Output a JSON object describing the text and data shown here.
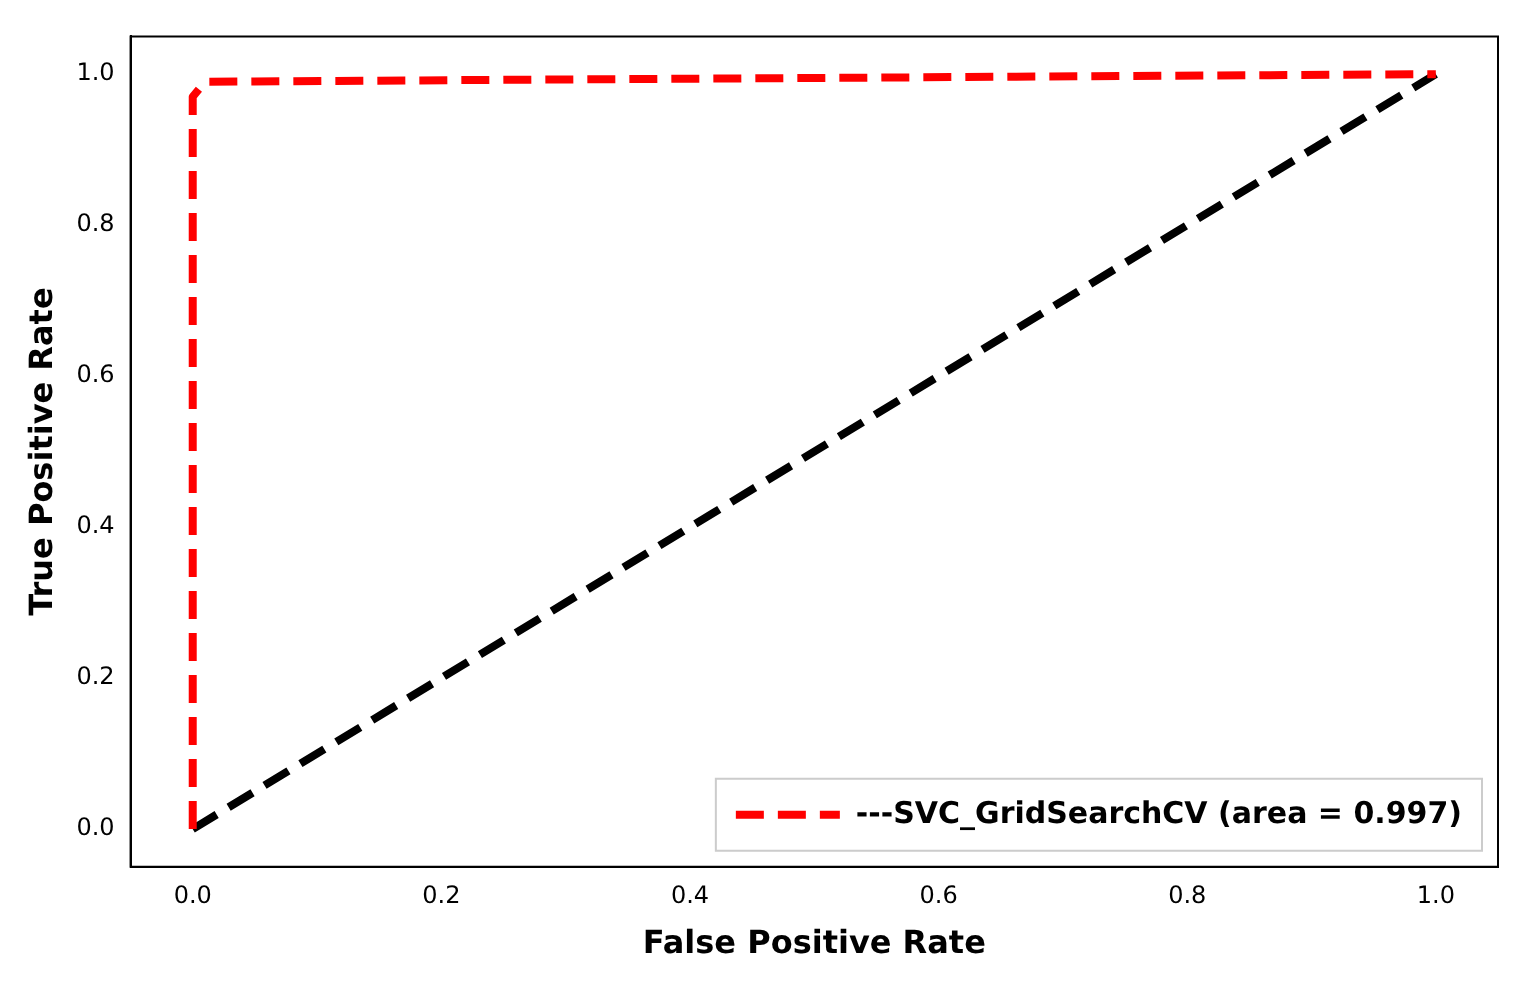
{
  "chart_data": {
    "type": "line",
    "xlabel": "False Positive Rate",
    "ylabel": "True Positive Rate",
    "xlim": [
      -0.05,
      1.05
    ],
    "ylim": [
      -0.05,
      1.05
    ],
    "xticks": [
      {
        "value": 0,
        "label": "0.0"
      },
      {
        "value": 0.2,
        "label": "0.2"
      },
      {
        "value": 0.4,
        "label": "0.4"
      },
      {
        "value": 0.6,
        "label": "0.6"
      },
      {
        "value": 0.8,
        "label": "0.8"
      },
      {
        "value": 1,
        "label": "1.0"
      }
    ],
    "yticks": [
      {
        "value": 0,
        "label": "0.0"
      },
      {
        "value": 0.2,
        "label": "0.2"
      },
      {
        "value": 0.4,
        "label": "0.4"
      },
      {
        "value": 0.6,
        "label": "0.6"
      },
      {
        "value": 0.8,
        "label": "0.8"
      },
      {
        "value": 1,
        "label": "1.0"
      }
    ],
    "grid": false,
    "legend": "bottom right",
    "marker": "none",
    "line_style": "dashed",
    "series": [
      {
        "name": "---SVC_GridSearchCV (area = 0.997)",
        "color": "#ff0000",
        "x": [
          0,
          0,
          0.01,
          1
        ],
        "values": [
          0,
          0.97,
          0.99,
          1
        ]
      },
      {
        "color": "#000000",
        "x": [
          0,
          1
        ],
        "values": [
          0,
          1
        ]
      }
    ]
  }
}
